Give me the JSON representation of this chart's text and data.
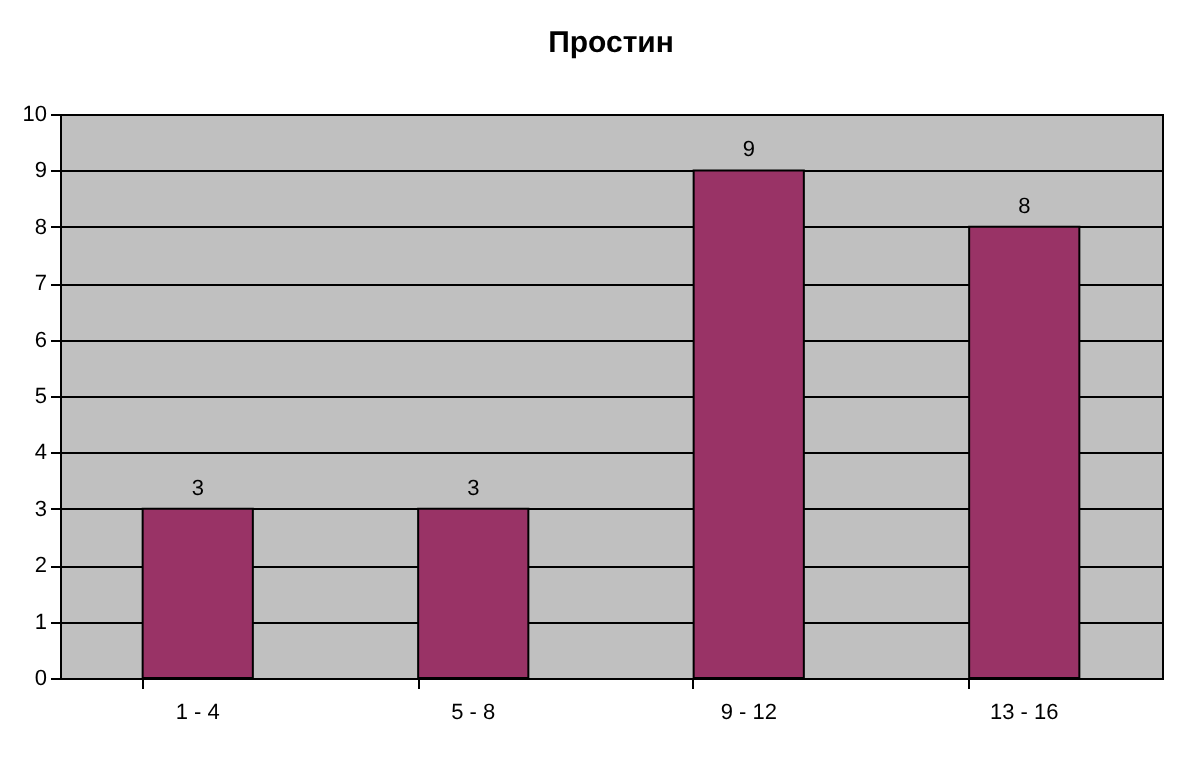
{
  "chart_data": {
    "type": "bar",
    "title": "Простин",
    "categories": [
      "1 - 4",
      "5 - 8",
      "9 - 12",
      "13 - 16"
    ],
    "values": [
      3,
      3,
      9,
      8
    ],
    "color": "#993366",
    "ylim": [
      0,
      10
    ],
    "yticks": [
      0,
      1,
      2,
      3,
      4,
      5,
      6,
      7,
      8,
      9,
      10
    ],
    "grid": "y",
    "data_labels": true
  }
}
